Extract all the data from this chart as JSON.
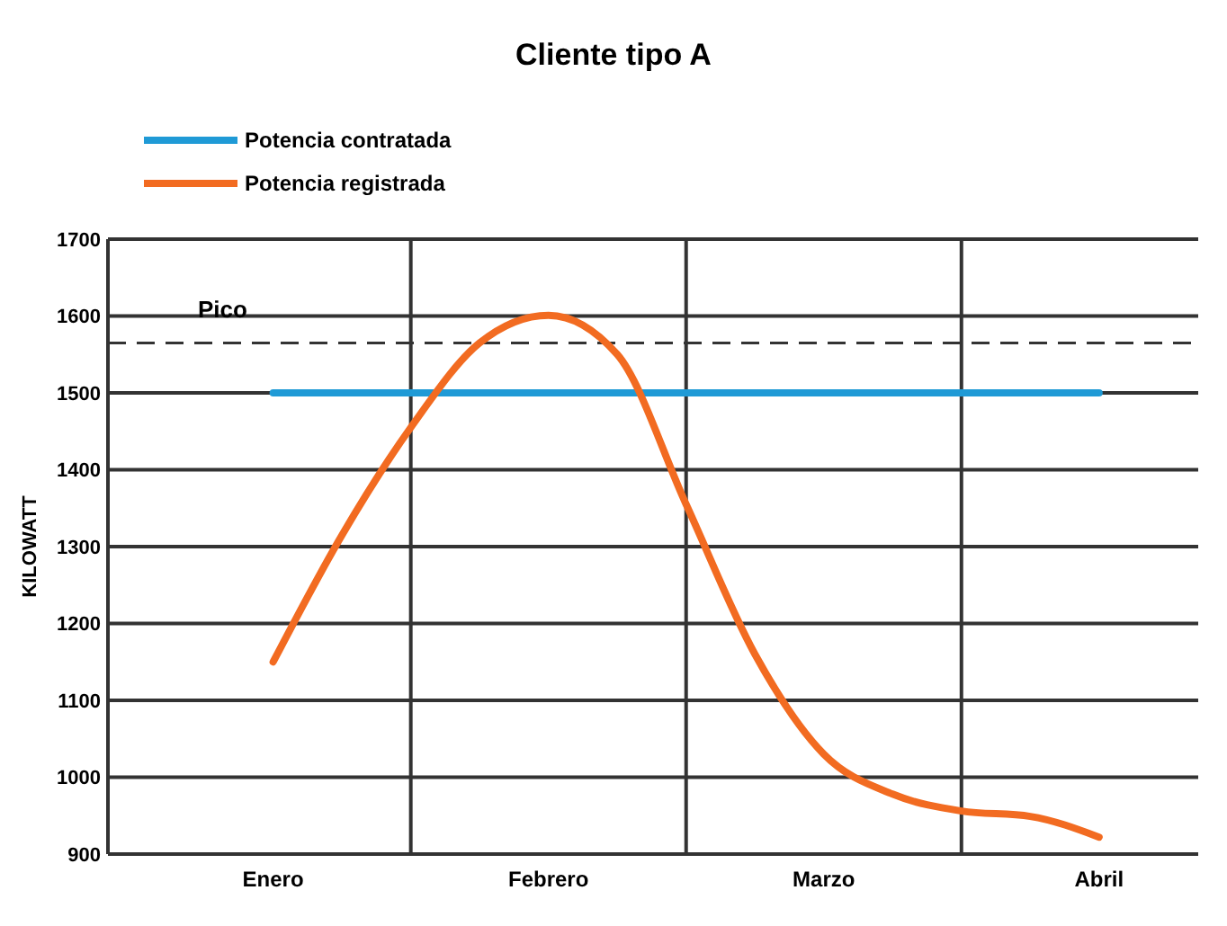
{
  "chart_data": {
    "type": "line",
    "title": "Cliente tipo A",
    "ylabel": "KILOWATT",
    "categories": [
      "Enero",
      null,
      null,
      null,
      "Febrero",
      null,
      null,
      null,
      "Marzo",
      null,
      null,
      null,
      "Abril"
    ],
    "ylim": [
      900,
      1700
    ],
    "yticks": [
      900,
      1000,
      1100,
      1200,
      1300,
      1400,
      1500,
      1600,
      1700
    ],
    "grid": true,
    "legend": "top left",
    "marker": "none",
    "line_style": "solid",
    "series": [
      {
        "name": "Potencia contratada",
        "color": "#1f9ad6",
        "values": [
          1500,
          1500,
          1500,
          1500,
          1500,
          1500,
          1500,
          1500,
          1500,
          1500,
          1500,
          1500,
          1500
        ]
      },
      {
        "name": "Potencia registrada",
        "color": "#f26b21",
        "values": [
          1150,
          1315,
          1455,
          1565,
          1601,
          1550,
          1355,
          1160,
          1030,
          978,
          956,
          949,
          922
        ]
      }
    ],
    "ref_lines": [
      {
        "axis": "y",
        "value": 1565,
        "label": "Pico",
        "line_style": "dashed",
        "color": "#333333"
      }
    ]
  }
}
